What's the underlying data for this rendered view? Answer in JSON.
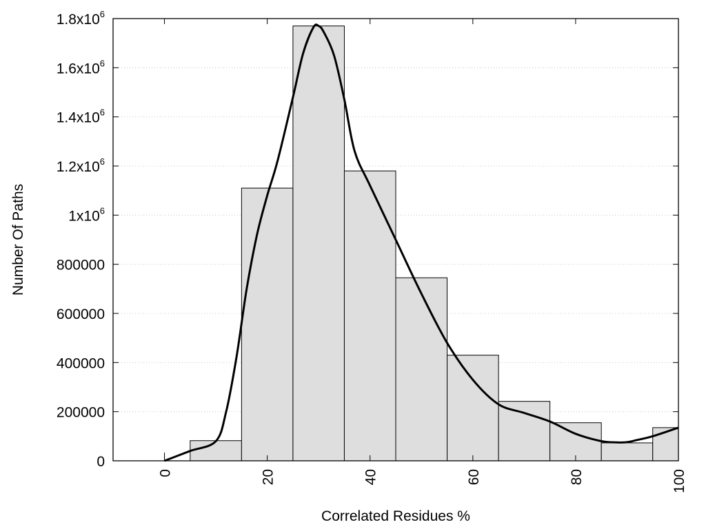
{
  "chart_data": {
    "type": "bar",
    "title": "",
    "xlabel": "Correlated Residues %",
    "ylabel": "Number Of Paths",
    "xlim": [
      -10,
      100
    ],
    "ylim": [
      0,
      1800000
    ],
    "grid": true,
    "x_ticks": [
      0,
      20,
      40,
      60,
      80,
      100
    ],
    "y_ticks": [
      {
        "value": 0,
        "label": "0"
      },
      {
        "value": 200000,
        "label": "200000"
      },
      {
        "value": 400000,
        "label": "400000"
      },
      {
        "value": 600000,
        "label": "600000"
      },
      {
        "value": 800000,
        "label": "800000"
      },
      {
        "value": 1000000,
        "base": "1x10",
        "exp": "6"
      },
      {
        "value": 1200000,
        "base": "1.2x10",
        "exp": "6"
      },
      {
        "value": 1400000,
        "base": "1.4x10",
        "exp": "6"
      },
      {
        "value": 1600000,
        "base": "1.6x10",
        "exp": "6"
      },
      {
        "value": 1800000,
        "base": "1.8x10",
        "exp": "6"
      }
    ],
    "bars": [
      {
        "x0": 0,
        "x1": 5,
        "value": 0
      },
      {
        "x0": 5,
        "x1": 15,
        "value": 82000
      },
      {
        "x0": 15,
        "x1": 25,
        "value": 1110000
      },
      {
        "x0": 25,
        "x1": 35,
        "value": 1770000
      },
      {
        "x0": 35,
        "x1": 45,
        "value": 1180000
      },
      {
        "x0": 45,
        "x1": 55,
        "value": 745000
      },
      {
        "x0": 55,
        "x1": 65,
        "value": 430000
      },
      {
        "x0": 65,
        "x1": 75,
        "value": 242000
      },
      {
        "x0": 75,
        "x1": 85,
        "value": 155000
      },
      {
        "x0": 85,
        "x1": 95,
        "value": 73000
      },
      {
        "x0": 95,
        "x1": 100,
        "value": 135000
      }
    ],
    "curve": {
      "x": [
        0,
        5,
        10,
        12,
        14,
        16,
        18,
        20,
        22,
        25,
        27,
        29,
        30,
        31,
        33,
        35,
        37,
        40,
        45,
        50,
        55,
        60,
        65,
        70,
        75,
        80,
        85,
        88,
        90,
        92,
        95,
        100
      ],
      "y": [
        0,
        40000,
        80000,
        200000,
        420000,
        700000,
        920000,
        1080000,
        1220000,
        1480000,
        1660000,
        1765000,
        1770000,
        1745000,
        1650000,
        1470000,
        1260000,
        1120000,
        900000,
        680000,
        480000,
        330000,
        230000,
        195000,
        160000,
        110000,
        80000,
        75000,
        76000,
        85000,
        100000,
        135000
      ]
    }
  }
}
